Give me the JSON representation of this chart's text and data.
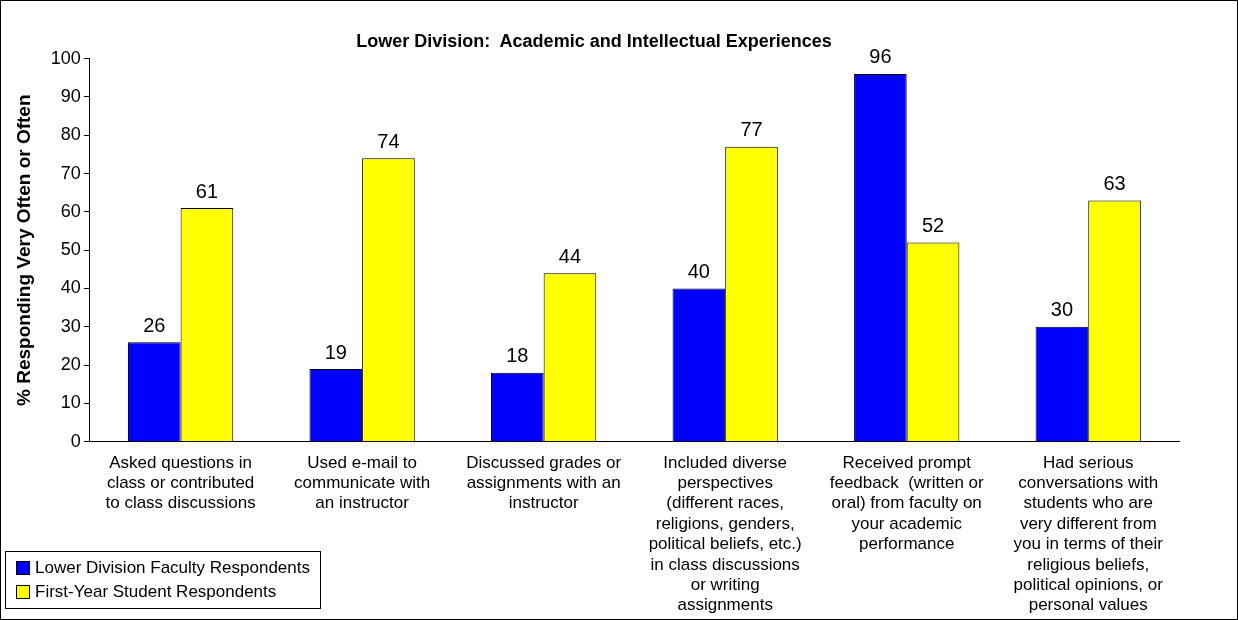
{
  "chart_data": {
    "type": "bar",
    "title": "Lower Division:  Academic and Intellectual Experiences",
    "ylabel": "% Responding Very Often or Often",
    "categories": [
      "Asked questions in class or contributed to class discussions",
      "Used e-mail to communicate with an instructor",
      "Discussed grades or assignments with an instructor",
      "Included diverse perspectives (different races, religions, genders, political beliefs, etc.) in class discussions or writing assignments",
      "Received prompt feedback  (written or oral) from faculty on your academic performance",
      "Had serious conversations with students who are very different from you in terms of their religious beliefs, political opinions, or personal values"
    ],
    "series": [
      {
        "name": "Lower Division Faculty Respondents",
        "color": "#0000ff",
        "values": [
          26,
          19,
          18,
          40,
          96,
          30
        ]
      },
      {
        "name": "First-Year Student Respondents",
        "color": "#ffff00",
        "values": [
          61,
          74,
          44,
          77,
          52,
          63
        ]
      }
    ],
    "ylim": [
      0,
      100
    ],
    "yticks": [
      0,
      10,
      20,
      30,
      40,
      50,
      60,
      70,
      80,
      90,
      100
    ],
    "grid": false,
    "legend": "bottom left",
    "data_labels": true
  }
}
